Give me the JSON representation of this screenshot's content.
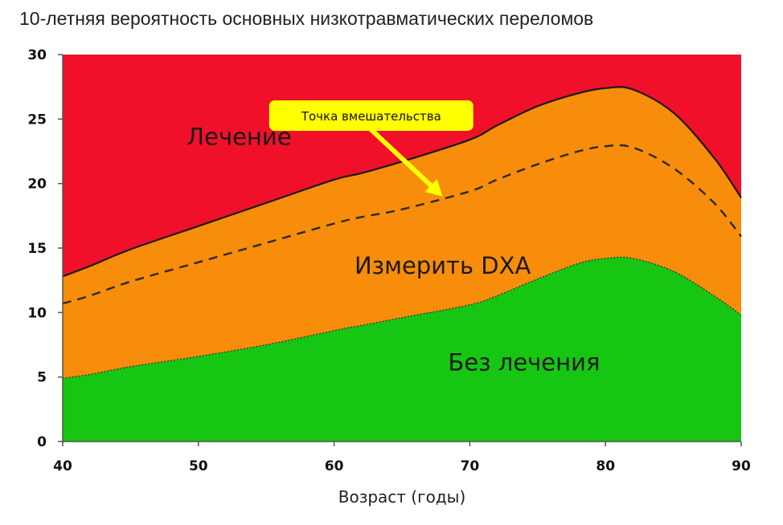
{
  "title": "10-летняя вероятность основных низкотравматических переломов",
  "chart_data": {
    "type": "area",
    "xlabel": "Возраст (годы)",
    "ylabel": "",
    "xlim": [
      40,
      90
    ],
    "ylim": [
      0,
      30
    ],
    "x_ticks": [
      "40",
      "50",
      "60",
      "70",
      "80",
      "90"
    ],
    "y_ticks": [
      "0",
      "5",
      "10",
      "15",
      "20",
      "25",
      "30"
    ],
    "x": [
      40,
      42,
      45,
      50,
      55,
      60,
      62,
      65,
      70,
      72,
      75,
      78,
      80,
      82,
      85,
      88,
      90
    ],
    "lower_threshold": [
      4.9,
      5.2,
      5.8,
      6.6,
      7.5,
      8.6,
      9.0,
      9.6,
      10.6,
      11.3,
      12.6,
      13.8,
      14.2,
      14.2,
      13.2,
      11.3,
      9.8
    ],
    "upper_threshold": [
      12.8,
      13.6,
      14.9,
      16.7,
      18.5,
      20.3,
      20.8,
      21.7,
      23.4,
      24.5,
      26.0,
      27.0,
      27.4,
      27.3,
      25.5,
      22.0,
      18.9
    ],
    "intervention_threshold": [
      10.7,
      11.3,
      12.4,
      13.9,
      15.4,
      16.9,
      17.4,
      18.0,
      19.4,
      20.3,
      21.5,
      22.5,
      22.9,
      22.8,
      21.2,
      18.5,
      15.9
    ],
    "regions": [
      {
        "label": "Лечение",
        "color": "#f0102a",
        "x": 53,
        "y": 23
      },
      {
        "label": "Измерить DXA",
        "color": "#f78d0a",
        "x": 68,
        "y": 13
      },
      {
        "label": "Без лечения",
        "color": "#16c612",
        "x": 74,
        "y": 5.5
      }
    ],
    "annotation": {
      "label": "Точка вмешательства",
      "box_color": "#ffff00",
      "arrow_color": "#ffff00",
      "from_x": 62.5,
      "from_y": 24.4,
      "to_x": 68,
      "to_y": 19
    }
  }
}
